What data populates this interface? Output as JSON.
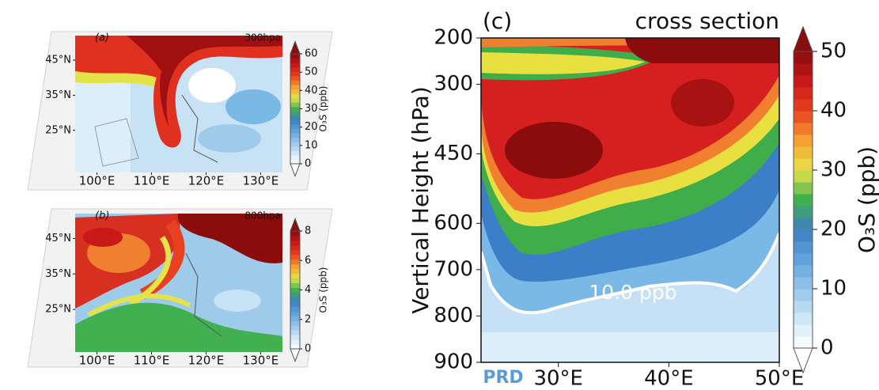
{
  "chart_data": [
    {
      "type": "contour",
      "title": "(a)",
      "annotation": "300hpa",
      "xlim": [
        96,
        134
      ],
      "ylim": [
        13,
        52
      ],
      "xticks": [
        {
          "value": 100,
          "label": "100°E"
        },
        {
          "value": 110,
          "label": "110°E"
        },
        {
          "value": 120,
          "label": "120°E"
        },
        {
          "value": 130,
          "label": "130°E"
        }
      ],
      "yticks": [
        {
          "value": 25,
          "label": "25°N"
        },
        {
          "value": 35,
          "label": "35°N"
        },
        {
          "value": 45,
          "label": "45°N"
        }
      ],
      "clim": [
        0,
        60
      ],
      "cticks": [
        0,
        10,
        20,
        30,
        40,
        50,
        60
      ],
      "clabel": "O₃S (ppb)"
    },
    {
      "type": "contour",
      "title": "(b)",
      "annotation": "800hpa",
      "xlim": [
        96,
        134
      ],
      "ylim": [
        13,
        52
      ],
      "xticks": [
        {
          "value": 100,
          "label": "100°E"
        },
        {
          "value": 110,
          "label": "110°E"
        },
        {
          "value": 120,
          "label": "120°E"
        },
        {
          "value": 130,
          "label": "130°E"
        }
      ],
      "yticks": [
        {
          "value": 25,
          "label": "25°N"
        },
        {
          "value": 35,
          "label": "35°N"
        },
        {
          "value": 45,
          "label": "45°N"
        }
      ],
      "clim": [
        0,
        8
      ],
      "cticks": [
        0,
        2,
        4,
        6,
        8
      ],
      "clabel": "O₃S (ppb)"
    },
    {
      "type": "contour",
      "title": "(c)",
      "subtitle": "cross section",
      "ylabel": "Vertical Height (hPa)",
      "xlim": [
        23,
        50
      ],
      "ylim": [
        900,
        200
      ],
      "xticks": [
        {
          "value": 30,
          "label": "30°E"
        },
        {
          "value": 40,
          "label": "40°E"
        },
        {
          "value": 50,
          "label": "50°E"
        }
      ],
      "yticks": [
        200,
        300,
        450,
        600,
        700,
        800,
        900
      ],
      "clim": [
        0,
        50
      ],
      "cticks": [
        0,
        10,
        20,
        30,
        40,
        50
      ],
      "clabel": "O₃S (ppb)",
      "annotations": [
        "PRD",
        "10.0 ppb"
      ]
    }
  ]
}
